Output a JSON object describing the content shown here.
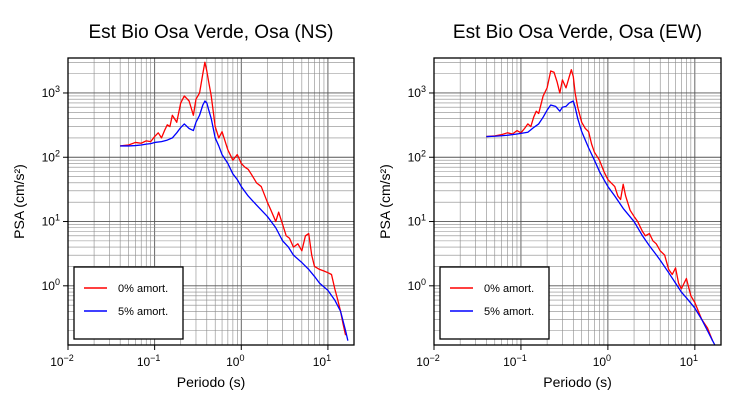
{
  "chart_data": [
    {
      "type": "line",
      "title": "Est Bio Osa Verde, Osa (NS)",
      "xlabel": "Periodo (s)",
      "ylabel": "PSA (cm/s²)",
      "xscale": "log",
      "yscale": "log",
      "xlim": [
        0.01,
        20
      ],
      "ylim": [
        0.12,
        3500
      ],
      "grid": true,
      "legend_position": "bottom-left",
      "x_ticks": [
        {
          "value": 0.01,
          "base": "10",
          "exp": "−2"
        },
        {
          "value": 0.1,
          "base": "10",
          "exp": "−1"
        },
        {
          "value": 1,
          "base": "10",
          "exp": "0"
        },
        {
          "value": 10,
          "base": "10",
          "exp": "1"
        }
      ],
      "y_ticks": [
        {
          "value": 1,
          "base": "10",
          "exp": "0"
        },
        {
          "value": 10,
          "base": "10",
          "exp": "1"
        },
        {
          "value": 100,
          "base": "10",
          "exp": "2"
        },
        {
          "value": 1000,
          "base": "10",
          "exp": "3"
        }
      ],
      "series": [
        {
          "name": "0% amort.",
          "color": "#ff0000",
          "points": [
            [
              0.04,
              150
            ],
            [
              0.05,
              155
            ],
            [
              0.06,
              170
            ],
            [
              0.07,
              165
            ],
            [
              0.08,
              180
            ],
            [
              0.09,
              175
            ],
            [
              0.1,
              210
            ],
            [
              0.11,
              240
            ],
            [
              0.12,
              200
            ],
            [
              0.13,
              260
            ],
            [
              0.14,
              320
            ],
            [
              0.15,
              300
            ],
            [
              0.16,
              450
            ],
            [
              0.18,
              350
            ],
            [
              0.2,
              700
            ],
            [
              0.22,
              900
            ],
            [
              0.25,
              750
            ],
            [
              0.28,
              450
            ],
            [
              0.3,
              800
            ],
            [
              0.33,
              1000
            ],
            [
              0.36,
              2000
            ],
            [
              0.38,
              3000
            ],
            [
              0.4,
              2200
            ],
            [
              0.42,
              1500
            ],
            [
              0.45,
              900
            ],
            [
              0.5,
              300
            ],
            [
              0.55,
              200
            ],
            [
              0.6,
              250
            ],
            [
              0.7,
              130
            ],
            [
              0.8,
              90
            ],
            [
              0.9,
              110
            ],
            [
              1.0,
              80
            ],
            [
              1.1,
              70
            ],
            [
              1.2,
              65
            ],
            [
              1.3,
              55
            ],
            [
              1.5,
              40
            ],
            [
              1.7,
              35
            ],
            [
              2.0,
              20
            ],
            [
              2.2,
              15
            ],
            [
              2.5,
              10
            ],
            [
              2.7,
              14
            ],
            [
              3.0,
              9
            ],
            [
              3.3,
              6
            ],
            [
              3.6,
              5.5
            ],
            [
              4.0,
              4
            ],
            [
              4.5,
              4.5
            ],
            [
              5.0,
              3.5
            ],
            [
              5.5,
              6
            ],
            [
              6.0,
              6.5
            ],
            [
              6.5,
              3
            ],
            [
              7.0,
              2
            ],
            [
              8.0,
              1.8
            ],
            [
              9.0,
              1.7
            ],
            [
              10,
              1.6
            ],
            [
              11,
              1.5
            ],
            [
              12,
              0.9
            ],
            [
              13,
              0.6
            ],
            [
              14,
              0.4
            ],
            [
              15,
              0.25
            ],
            [
              16,
              0.17
            ]
          ]
        },
        {
          "name": "5% amort.",
          "color": "#0000ff",
          "points": [
            [
              0.04,
              150
            ],
            [
              0.05,
              150
            ],
            [
              0.06,
              152
            ],
            [
              0.07,
              155
            ],
            [
              0.08,
              160
            ],
            [
              0.09,
              163
            ],
            [
              0.1,
              170
            ],
            [
              0.12,
              175
            ],
            [
              0.14,
              185
            ],
            [
              0.16,
              200
            ],
            [
              0.18,
              240
            ],
            [
              0.2,
              290
            ],
            [
              0.22,
              330
            ],
            [
              0.25,
              280
            ],
            [
              0.28,
              260
            ],
            [
              0.3,
              350
            ],
            [
              0.33,
              450
            ],
            [
              0.36,
              650
            ],
            [
              0.38,
              750
            ],
            [
              0.4,
              700
            ],
            [
              0.42,
              550
            ],
            [
              0.45,
              400
            ],
            [
              0.5,
              200
            ],
            [
              0.55,
              150
            ],
            [
              0.6,
              110
            ],
            [
              0.7,
              80
            ],
            [
              0.8,
              55
            ],
            [
              0.9,
              45
            ],
            [
              1.0,
              35
            ],
            [
              1.2,
              25
            ],
            [
              1.5,
              18
            ],
            [
              2.0,
              12
            ],
            [
              2.5,
              8
            ],
            [
              3.0,
              5
            ],
            [
              3.5,
              4
            ],
            [
              4.0,
              3
            ],
            [
              5.0,
              2.3
            ],
            [
              6.0,
              1.8
            ],
            [
              7.0,
              1.4
            ],
            [
              8.0,
              1.1
            ],
            [
              10,
              0.85
            ],
            [
              12,
              0.6
            ],
            [
              14,
              0.4
            ],
            [
              16,
              0.2
            ],
            [
              17,
              0.14
            ]
          ]
        }
      ]
    },
    {
      "type": "line",
      "title": "Est Bio Osa Verde, Osa (EW)",
      "xlabel": "Periodo (s)",
      "ylabel": "PSA (cm/s²)",
      "xscale": "log",
      "yscale": "log",
      "xlim": [
        0.01,
        20
      ],
      "ylim": [
        0.12,
        3500
      ],
      "grid": true,
      "legend_position": "bottom-left",
      "x_ticks": [
        {
          "value": 0.01,
          "base": "10",
          "exp": "−2"
        },
        {
          "value": 0.1,
          "base": "10",
          "exp": "−1"
        },
        {
          "value": 1,
          "base": "10",
          "exp": "0"
        },
        {
          "value": 10,
          "base": "10",
          "exp": "1"
        }
      ],
      "y_ticks": [
        {
          "value": 1,
          "base": "10",
          "exp": "0"
        },
        {
          "value": 10,
          "base": "10",
          "exp": "1"
        },
        {
          "value": 100,
          "base": "10",
          "exp": "2"
        },
        {
          "value": 1000,
          "base": "10",
          "exp": "3"
        }
      ],
      "series": [
        {
          "name": "0% amort.",
          "color": "#ff0000",
          "points": [
            [
              0.04,
              210
            ],
            [
              0.05,
              215
            ],
            [
              0.06,
              225
            ],
            [
              0.07,
              240
            ],
            [
              0.08,
              230
            ],
            [
              0.09,
              260
            ],
            [
              0.1,
              240
            ],
            [
              0.11,
              280
            ],
            [
              0.12,
              330
            ],
            [
              0.13,
              300
            ],
            [
              0.14,
              420
            ],
            [
              0.15,
              520
            ],
            [
              0.16,
              480
            ],
            [
              0.18,
              900
            ],
            [
              0.2,
              1200
            ],
            [
              0.22,
              2200
            ],
            [
              0.24,
              2100
            ],
            [
              0.26,
              1500
            ],
            [
              0.28,
              1000
            ],
            [
              0.3,
              1600
            ],
            [
              0.33,
              1200
            ],
            [
              0.36,
              1800
            ],
            [
              0.38,
              2300
            ],
            [
              0.4,
              1800
            ],
            [
              0.42,
              1000
            ],
            [
              0.45,
              600
            ],
            [
              0.5,
              350
            ],
            [
              0.55,
              280
            ],
            [
              0.6,
              250
            ],
            [
              0.65,
              160
            ],
            [
              0.7,
              120
            ],
            [
              0.8,
              90
            ],
            [
              0.9,
              60
            ],
            [
              1.0,
              45
            ],
            [
              1.2,
              35
            ],
            [
              1.3,
              25
            ],
            [
              1.4,
              22
            ],
            [
              1.5,
              38
            ],
            [
              1.6,
              25
            ],
            [
              1.8,
              15
            ],
            [
              2.0,
              12
            ],
            [
              2.2,
              10
            ],
            [
              2.5,
              7
            ],
            [
              2.7,
              6
            ],
            [
              3.0,
              6.5
            ],
            [
              3.3,
              5
            ],
            [
              3.6,
              4.5
            ],
            [
              4.0,
              3.5
            ],
            [
              4.5,
              3
            ],
            [
              5.0,
              1.8
            ],
            [
              5.5,
              1.5
            ],
            [
              6.0,
              1.9
            ],
            [
              6.5,
              1.1
            ],
            [
              7.0,
              0.9
            ],
            [
              8.0,
              1.3
            ],
            [
              9.0,
              0.7
            ],
            [
              10,
              0.55
            ],
            [
              11,
              0.4
            ],
            [
              12,
              0.3
            ],
            [
              14,
              0.22
            ],
            [
              16,
              0.14
            ]
          ]
        },
        {
          "name": "5% amort.",
          "color": "#0000ff",
          "points": [
            [
              0.04,
              210
            ],
            [
              0.05,
              212
            ],
            [
              0.06,
              216
            ],
            [
              0.07,
              220
            ],
            [
              0.08,
              225
            ],
            [
              0.09,
              230
            ],
            [
              0.1,
              235
            ],
            [
              0.12,
              245
            ],
            [
              0.14,
              290
            ],
            [
              0.16,
              330
            ],
            [
              0.18,
              420
            ],
            [
              0.2,
              540
            ],
            [
              0.22,
              650
            ],
            [
              0.25,
              620
            ],
            [
              0.28,
              520
            ],
            [
              0.3,
              600
            ],
            [
              0.33,
              620
            ],
            [
              0.36,
              700
            ],
            [
              0.4,
              750
            ],
            [
              0.42,
              600
            ],
            [
              0.45,
              400
            ],
            [
              0.5,
              250
            ],
            [
              0.6,
              140
            ],
            [
              0.7,
              90
            ],
            [
              0.8,
              60
            ],
            [
              0.9,
              45
            ],
            [
              1.0,
              35
            ],
            [
              1.2,
              25
            ],
            [
              1.5,
              16
            ],
            [
              2.0,
              10
            ],
            [
              2.5,
              6
            ],
            [
              3.0,
              4.2
            ],
            [
              3.5,
              3.2
            ],
            [
              4.0,
              2.5
            ],
            [
              5.0,
              1.6
            ],
            [
              6.0,
              1.1
            ],
            [
              7.0,
              0.8
            ],
            [
              8.0,
              0.65
            ],
            [
              10,
              0.45
            ],
            [
              12,
              0.3
            ],
            [
              14,
              0.2
            ],
            [
              16,
              0.14
            ],
            [
              17,
              0.12
            ]
          ]
        }
      ]
    }
  ]
}
